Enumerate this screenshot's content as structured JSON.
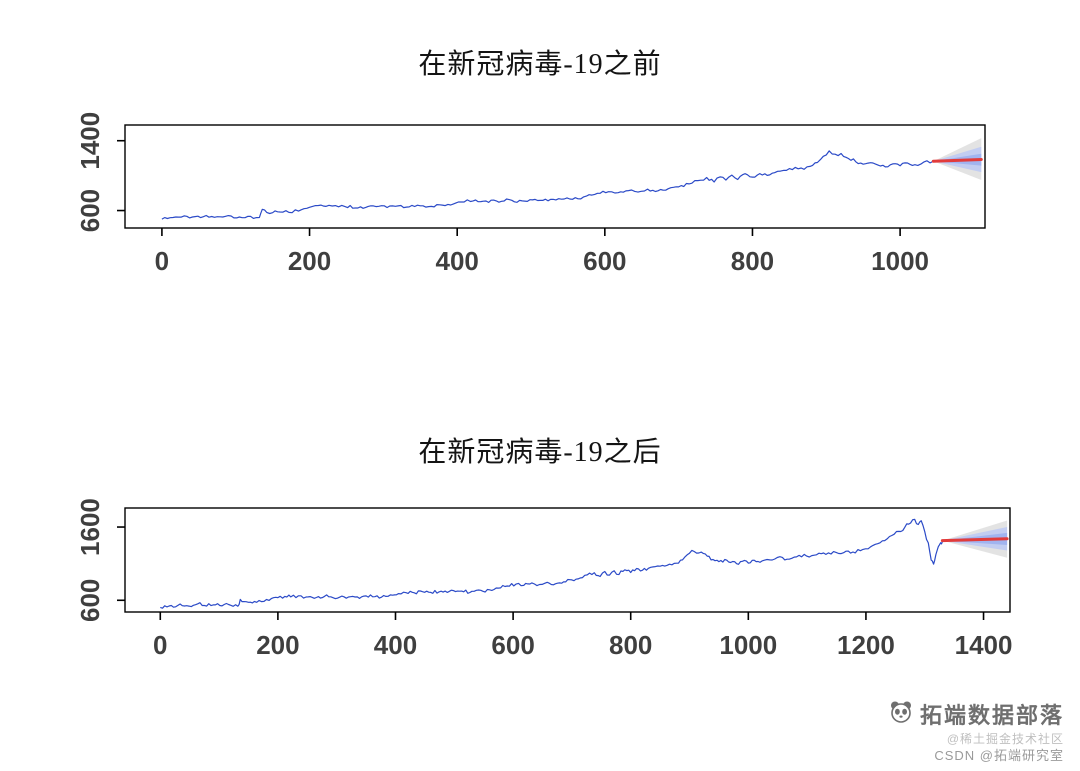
{
  "chart_data": [
    {
      "type": "line",
      "title": "在新冠病毒-19之前",
      "xlabel": "",
      "ylabel": "",
      "xlim": [
        -50,
        1115
      ],
      "ylim": [
        400,
        1580
      ],
      "x_ticks": [
        0,
        200,
        400,
        600,
        800,
        1000
      ],
      "y_ticks": [
        600,
        1400
      ],
      "grid": false,
      "legend": "none",
      "line_color": "#2b4ac7",
      "noise_amp": 22,
      "points": [
        [
          0,
          505
        ],
        [
          15,
          520
        ],
        [
          30,
          535
        ],
        [
          45,
          528
        ],
        [
          60,
          540
        ],
        [
          75,
          532
        ],
        [
          90,
          538
        ],
        [
          105,
          528
        ],
        [
          120,
          533
        ],
        [
          132,
          522
        ],
        [
          136,
          612
        ],
        [
          142,
          578
        ],
        [
          150,
          572
        ],
        [
          160,
          588
        ],
        [
          172,
          582
        ],
        [
          185,
          598
        ],
        [
          200,
          638
        ],
        [
          212,
          658
        ],
        [
          222,
          648
        ],
        [
          235,
          660
        ],
        [
          248,
          642
        ],
        [
          262,
          632
        ],
        [
          276,
          640
        ],
        [
          290,
          648
        ],
        [
          305,
          638
        ],
        [
          320,
          650
        ],
        [
          335,
          642
        ],
        [
          350,
          655
        ],
        [
          365,
          648
        ],
        [
          380,
          660
        ],
        [
          395,
          672
        ],
        [
          405,
          695
        ],
        [
          418,
          708
        ],
        [
          432,
          700
        ],
        [
          446,
          714
        ],
        [
          460,
          706
        ],
        [
          474,
          718
        ],
        [
          488,
          712
        ],
        [
          502,
          722
        ],
        [
          516,
          716
        ],
        [
          530,
          728
        ],
        [
          545,
          735
        ],
        [
          560,
          745
        ],
        [
          575,
          762
        ],
        [
          590,
          795
        ],
        [
          605,
          820
        ],
        [
          618,
          802
        ],
        [
          632,
          832
        ],
        [
          645,
          812
        ],
        [
          658,
          842
        ],
        [
          672,
          822
        ],
        [
          686,
          852
        ],
        [
          700,
          875
        ],
        [
          714,
          905
        ],
        [
          726,
          945
        ],
        [
          738,
          975
        ],
        [
          748,
          928
        ],
        [
          756,
          988
        ],
        [
          764,
          945
        ],
        [
          772,
          1002
        ],
        [
          780,
          952
        ],
        [
          790,
          1018
        ],
        [
          800,
          985
        ],
        [
          810,
          1028
        ],
        [
          820,
          1005
        ],
        [
          830,
          1038
        ],
        [
          842,
          1058
        ],
        [
          854,
          1072
        ],
        [
          866,
          1088
        ],
        [
          878,
          1108
        ],
        [
          888,
          1148
        ],
        [
          896,
          1225
        ],
        [
          904,
          1282
        ],
        [
          912,
          1242
        ],
        [
          920,
          1252
        ],
        [
          930,
          1198
        ],
        [
          940,
          1162
        ],
        [
          950,
          1132
        ],
        [
          960,
          1152
        ],
        [
          970,
          1118
        ],
        [
          980,
          1102
        ],
        [
          990,
          1135
        ],
        [
          1000,
          1112
        ],
        [
          1010,
          1142
        ],
        [
          1020,
          1122
        ],
        [
          1032,
          1152
        ],
        [
          1045,
          1165
        ]
      ],
      "forecast": {
        "x_start": 1045,
        "x_end": 1110,
        "y_start": 1165,
        "y_end": 1185,
        "line_color": "#e23b3b",
        "bands": [
          {
            "upper": 1430,
            "lower": 950,
            "color": "#d9d9d9",
            "opacity": 0.75
          },
          {
            "upper": 1330,
            "lower": 1040,
            "color": "#bcc9f4",
            "opacity": 0.85
          },
          {
            "upper": 1250,
            "lower": 1115,
            "color": "#9db1f0",
            "opacity": 0.9
          }
        ]
      }
    },
    {
      "type": "line",
      "title": "在新冠病毒-19之后",
      "xlabel": "",
      "ylabel": "",
      "xlim": [
        -60,
        1445
      ],
      "ylim": [
        440,
        1860
      ],
      "x_ticks": [
        0,
        200,
        400,
        600,
        800,
        1000,
        1200,
        1400
      ],
      "y_ticks": [
        600,
        1600
      ],
      "grid": false,
      "legend": "none",
      "line_color": "#2b4ac7",
      "noise_amp": 28,
      "points": [
        [
          0,
          505
        ],
        [
          15,
          520
        ],
        [
          30,
          535
        ],
        [
          45,
          528
        ],
        [
          60,
          540
        ],
        [
          75,
          532
        ],
        [
          90,
          538
        ],
        [
          105,
          528
        ],
        [
          120,
          533
        ],
        [
          132,
          522
        ],
        [
          136,
          612
        ],
        [
          142,
          578
        ],
        [
          150,
          572
        ],
        [
          160,
          588
        ],
        [
          172,
          582
        ],
        [
          185,
          598
        ],
        [
          200,
          638
        ],
        [
          212,
          658
        ],
        [
          222,
          648
        ],
        [
          235,
          660
        ],
        [
          248,
          642
        ],
        [
          262,
          632
        ],
        [
          276,
          640
        ],
        [
          290,
          648
        ],
        [
          305,
          638
        ],
        [
          320,
          650
        ],
        [
          335,
          642
        ],
        [
          350,
          655
        ],
        [
          365,
          648
        ],
        [
          380,
          660
        ],
        [
          395,
          672
        ],
        [
          405,
          695
        ],
        [
          418,
          708
        ],
        [
          432,
          700
        ],
        [
          446,
          714
        ],
        [
          460,
          706
        ],
        [
          474,
          718
        ],
        [
          488,
          712
        ],
        [
          502,
          722
        ],
        [
          516,
          716
        ],
        [
          530,
          728
        ],
        [
          545,
          735
        ],
        [
          560,
          745
        ],
        [
          575,
          762
        ],
        [
          590,
          795
        ],
        [
          605,
          820
        ],
        [
          618,
          802
        ],
        [
          632,
          832
        ],
        [
          645,
          812
        ],
        [
          658,
          842
        ],
        [
          672,
          822
        ],
        [
          686,
          852
        ],
        [
          700,
          875
        ],
        [
          714,
          905
        ],
        [
          726,
          945
        ],
        [
          738,
          975
        ],
        [
          748,
          928
        ],
        [
          756,
          988
        ],
        [
          764,
          945
        ],
        [
          772,
          1002
        ],
        [
          780,
          952
        ],
        [
          790,
          1018
        ],
        [
          800,
          985
        ],
        [
          810,
          1028
        ],
        [
          820,
          1005
        ],
        [
          830,
          1038
        ],
        [
          842,
          1058
        ],
        [
          854,
          1072
        ],
        [
          866,
          1088
        ],
        [
          878,
          1108
        ],
        [
          888,
          1148
        ],
        [
          896,
          1225
        ],
        [
          904,
          1282
        ],
        [
          912,
          1242
        ],
        [
          920,
          1252
        ],
        [
          930,
          1198
        ],
        [
          940,
          1162
        ],
        [
          950,
          1132
        ],
        [
          960,
          1152
        ],
        [
          970,
          1118
        ],
        [
          980,
          1102
        ],
        [
          990,
          1135
        ],
        [
          1000,
          1112
        ],
        [
          1010,
          1142
        ],
        [
          1020,
          1122
        ],
        [
          1032,
          1152
        ],
        [
          1045,
          1165
        ],
        [
          1058,
          1188
        ],
        [
          1070,
          1162
        ],
        [
          1082,
          1198
        ],
        [
          1095,
          1225
        ],
        [
          1108,
          1205
        ],
        [
          1120,
          1248
        ],
        [
          1132,
          1222
        ],
        [
          1145,
          1262
        ],
        [
          1158,
          1238
        ],
        [
          1170,
          1275
        ],
        [
          1182,
          1252
        ],
        [
          1195,
          1295
        ],
        [
          1208,
          1330
        ],
        [
          1220,
          1372
        ],
        [
          1232,
          1420
        ],
        [
          1244,
          1480
        ],
        [
          1256,
          1545
        ],
        [
          1266,
          1600
        ],
        [
          1276,
          1655
        ],
        [
          1283,
          1700
        ],
        [
          1289,
          1640
        ],
        [
          1294,
          1690
        ],
        [
          1300,
          1540
        ],
        [
          1306,
          1380
        ],
        [
          1311,
          1150
        ],
        [
          1315,
          1090
        ],
        [
          1319,
          1230
        ],
        [
          1323,
          1330
        ],
        [
          1327,
          1390
        ],
        [
          1330,
          1400
        ]
      ],
      "forecast": {
        "x_start": 1330,
        "x_end": 1440,
        "y_start": 1415,
        "y_end": 1440,
        "line_color": "#e23b3b",
        "bands": [
          {
            "upper": 1690,
            "lower": 1180,
            "color": "#d9d9d9",
            "opacity": 0.75
          },
          {
            "upper": 1600,
            "lower": 1280,
            "color": "#bcc9f4",
            "opacity": 0.85
          },
          {
            "upper": 1520,
            "lower": 1355,
            "color": "#9db1f0",
            "opacity": 0.9
          }
        ]
      }
    }
  ],
  "watermark": {
    "brand": "拓端数据部落",
    "sub1": "@稀土掘金技术社区",
    "sub2": "CSDN @拓端研究室"
  },
  "colors": {
    "axis": "#000000",
    "tick_label": "#3f3f3f",
    "series_blue": "#2b4ac7",
    "forecast_red": "#e23b3b"
  }
}
